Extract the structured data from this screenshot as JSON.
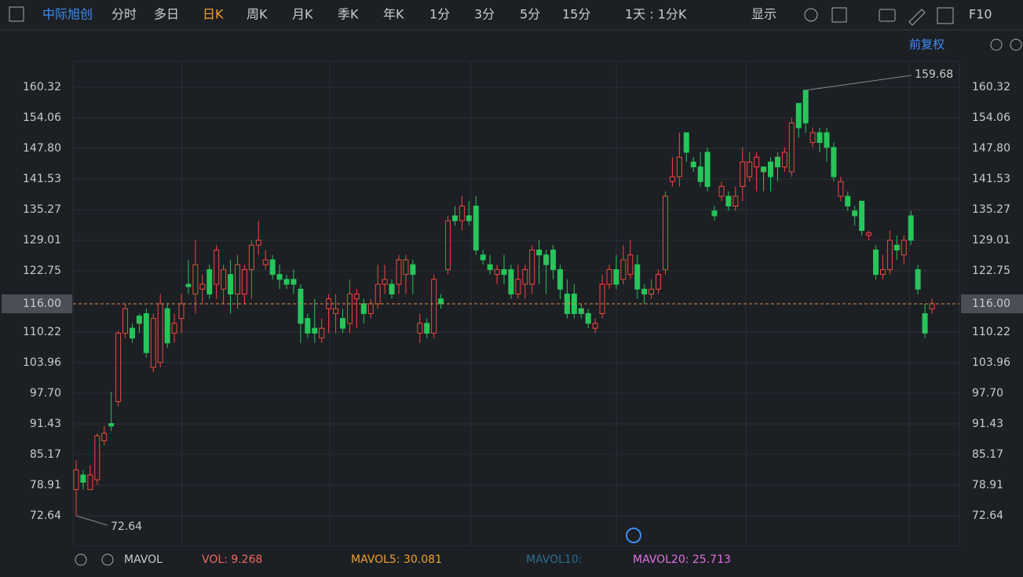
{
  "toolbar": {
    "stock": "中际旭创",
    "tabs": [
      "分时",
      "多日",
      "日K",
      "周K",
      "月K",
      "季K",
      "年K",
      "1分",
      "3分",
      "5分",
      "15分"
    ],
    "period": "1天 : 1分K",
    "display": "显示",
    "f10": "F10"
  },
  "adjust": "前复权",
  "indicator": {
    "name": "MAVOL",
    "vol": "VOL: 9.268",
    "mavol5": "MAVOL5: 30.081",
    "mavol10": "MAVOL10:",
    "mavol20": "MAVOL20: 25.713"
  },
  "chart_data": {
    "type": "candlestick",
    "up_color": "#f0483e",
    "down_color": "#27c55a",
    "ylim": [
      66.54,
      165.62
    ],
    "yticks": [
      72.64,
      78.91,
      85.17,
      91.43,
      {
        "value": 97.7,
        "label": "97.70"
      },
      103.96,
      110.22,
      122.75,
      129.01,
      135.27,
      141.53,
      {
        "value": 147.8,
        "label": "147.80"
      },
      154.06,
      160.32
    ],
    "last_price": {
      "value": 116,
      "label": "116.00"
    },
    "open": [
      78,
      81,
      78,
      80,
      88,
      91.5,
      96,
      110,
      111,
      113.5,
      114,
      103,
      104,
      115,
      110,
      113,
      120,
      118,
      119,
      123,
      120,
      119,
      122,
      118,
      118,
      123,
      128,
      124,
      125,
      122,
      121,
      121,
      119,
      113,
      111,
      109,
      115,
      114,
      113,
      112,
      117,
      116,
      114,
      116,
      120,
      120,
      120,
      122,
      124,
      110,
      112,
      110,
      117,
      123,
      134,
      133,
      134,
      136,
      126,
      124,
      122,
      123,
      123,
      118,
      120,
      120,
      127,
      126,
      127,
      123,
      118,
      118,
      115,
      114,
      111,
      114,
      120,
      123,
      121,
      122,
      124,
      119,
      118,
      119,
      123,
      141,
      142,
      151,
      145,
      144,
      147,
      135,
      138,
      138,
      136,
      140,
      142,
      144,
      144,
      145,
      146,
      144,
      143,
      157,
      159.68,
      149,
      151,
      151,
      148,
      138,
      138,
      135,
      137,
      130,
      127,
      122,
      123,
      128,
      126,
      134,
      123,
      114,
      115
    ],
    "high": [
      84,
      82,
      83,
      89.5,
      91,
      98,
      110.5,
      116,
      112,
      114,
      115,
      114,
      118,
      116,
      114,
      118,
      125,
      129,
      122,
      124,
      128,
      124,
      125,
      126,
      124,
      129,
      133,
      127,
      126,
      124,
      122,
      123,
      120,
      114,
      117,
      113,
      118,
      118,
      115,
      121,
      119,
      117,
      117,
      124,
      124,
      121,
      126,
      126,
      125,
      114,
      113,
      122,
      118,
      134,
      136,
      138,
      137,
      138,
      127,
      126,
      124,
      126,
      124,
      124,
      124,
      128,
      129,
      127,
      128,
      124,
      121,
      120,
      116,
      115,
      113,
      122,
      124,
      126,
      128,
      129,
      126,
      120,
      121,
      123,
      139,
      146,
      151,
      151,
      146,
      147,
      148,
      136,
      141,
      139,
      140,
      148,
      147,
      147,
      144,
      146,
      147,
      148,
      154,
      157,
      159.68,
      152,
      152,
      152,
      149,
      142,
      139,
      136,
      137,
      131,
      128,
      126,
      131,
      130,
      130,
      135,
      124,
      116,
      117
    ],
    "low": [
      72.64,
      78,
      78,
      79,
      87,
      90,
      95,
      109,
      108,
      110,
      105,
      102,
      103,
      107,
      108,
      110,
      118,
      114,
      116,
      117,
      117,
      116,
      114,
      115,
      116,
      117,
      126,
      123,
      121,
      119,
      119,
      118,
      108,
      109,
      108,
      108,
      110,
      110,
      110,
      110,
      111,
      112,
      113,
      115,
      118,
      117,
      118,
      118,
      118,
      108,
      109,
      109,
      115,
      122,
      132,
      131,
      132,
      126,
      124,
      122,
      120,
      120,
      117,
      117,
      117,
      118,
      120,
      118,
      121,
      117,
      113,
      113,
      113,
      111,
      110,
      113,
      119,
      119,
      120,
      121,
      117,
      116,
      117,
      118,
      122,
      140,
      140,
      145,
      143,
      140,
      139,
      133,
      137,
      135,
      135,
      137,
      141,
      139,
      139,
      139,
      141,
      143,
      142,
      150,
      151,
      148,
      147,
      145,
      141,
      137,
      135,
      132,
      130,
      129,
      121,
      121,
      122,
      125,
      124,
      128,
      118,
      109,
      114
    ],
    "close": [
      82,
      79.5,
      81,
      89,
      89.5,
      91,
      110,
      115,
      109,
      112,
      106,
      113,
      116,
      108,
      112,
      116,
      119.5,
      124,
      120,
      118,
      127,
      123,
      118,
      124,
      123,
      128,
      129,
      125,
      122,
      121,
      120,
      120,
      112,
      110,
      110,
      111,
      117,
      115,
      111,
      118,
      118,
      114,
      116,
      120,
      121,
      118,
      125,
      125,
      122,
      112,
      110,
      121,
      116,
      133,
      133,
      136,
      133,
      127,
      125,
      123,
      123,
      122,
      118,
      121,
      123,
      127,
      126,
      124,
      123,
      119,
      114,
      114,
      114,
      112,
      112,
      120,
      123,
      120,
      125,
      126,
      119,
      118,
      119,
      122,
      138,
      142,
      146,
      147,
      144,
      141,
      140,
      134,
      140,
      136,
      138,
      145,
      145,
      146,
      143,
      142,
      144,
      147,
      153,
      152,
      153,
      151,
      149,
      148,
      142,
      141,
      136,
      134,
      131,
      130.5,
      122,
      123,
      129,
      127,
      129,
      129,
      119,
      110,
      116
    ]
  }
}
